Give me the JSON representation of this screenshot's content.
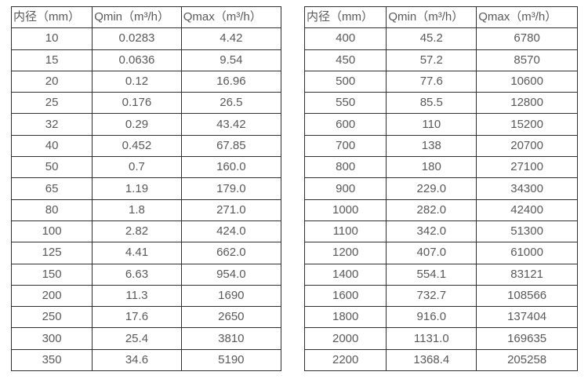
{
  "colors": {
    "background": "#ffffff",
    "table_border": "#2f2f2f",
    "text": "#595959"
  },
  "tables": [
    {
      "headers": [
        "内径（mm）",
        "Qmin（m³/h）",
        "Qmax（m³/h）"
      ],
      "rows": [
        [
          "10",
          "0.0283",
          "4.42"
        ],
        [
          "15",
          "0.0636",
          "9.54"
        ],
        [
          "20",
          "0.12",
          "16.96"
        ],
        [
          "25",
          "0.176",
          "26.5"
        ],
        [
          "32",
          "0.29",
          "43.42"
        ],
        [
          "40",
          "0.452",
          "67.85"
        ],
        [
          "50",
          "0.7",
          "160.0"
        ],
        [
          "65",
          "1.19",
          "179.0"
        ],
        [
          "80",
          "1.8",
          "271.0"
        ],
        [
          "100",
          "2.82",
          "424.0"
        ],
        [
          "125",
          "4.41",
          "662.0"
        ],
        [
          "150",
          "6.63",
          "954.0"
        ],
        [
          "200",
          "11.3",
          "1690"
        ],
        [
          "250",
          "17.6",
          "2650"
        ],
        [
          "300",
          "25.4",
          "3810"
        ],
        [
          "350",
          "34.6",
          "5190"
        ]
      ]
    },
    {
      "headers": [
        "内径（mm）",
        "Qmin（m³/h）",
        "Qmax（m³/h）"
      ],
      "rows": [
        [
          "400",
          "45.2",
          "6780"
        ],
        [
          "450",
          "57.2",
          "8570"
        ],
        [
          "500",
          "77.6",
          "10600"
        ],
        [
          "550",
          "85.5",
          "12800"
        ],
        [
          "600",
          "110",
          "15200"
        ],
        [
          "700",
          "138",
          "20700"
        ],
        [
          "800",
          "180",
          "27100"
        ],
        [
          "900",
          "229.0",
          "34300"
        ],
        [
          "1000",
          "282.0",
          "42400"
        ],
        [
          "1100",
          "342.0",
          "51300"
        ],
        [
          "1200",
          "407.0",
          "61000"
        ],
        [
          "1400",
          "554.1",
          "83121"
        ],
        [
          "1600",
          "732.7",
          "108566"
        ],
        [
          "1800",
          "916.0",
          "137404"
        ],
        [
          "2000",
          "1131.0",
          "169635"
        ],
        [
          "2200",
          "1368.4",
          "205258"
        ]
      ]
    }
  ]
}
